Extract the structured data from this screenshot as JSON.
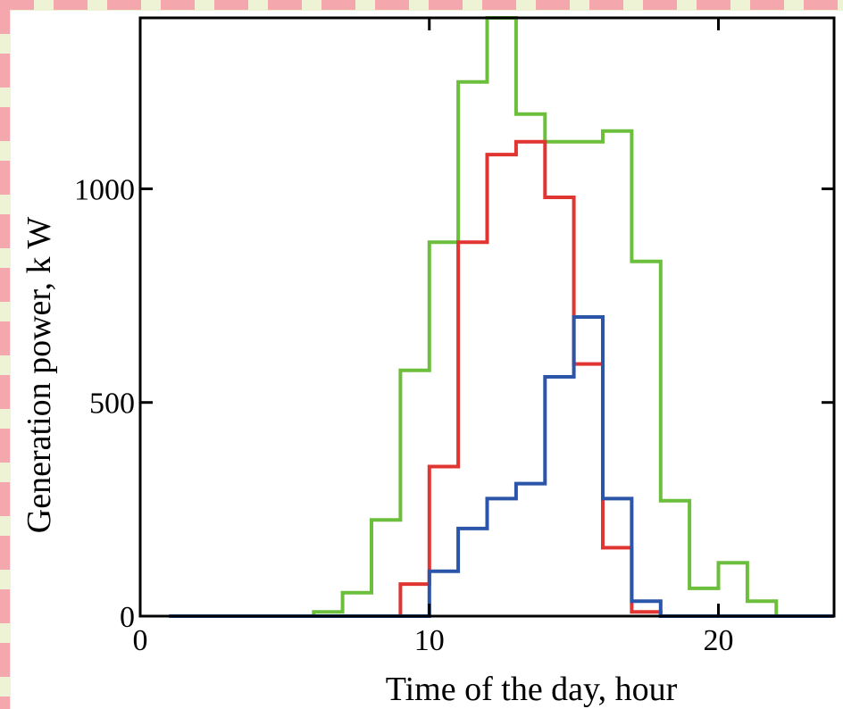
{
  "chart_data": {
    "type": "line",
    "step": true,
    "title": "",
    "xlabel": "Time of the day, hour",
    "ylabel": "Generation power, k  W",
    "xlim": [
      0,
      24
    ],
    "ylim": [
      0,
      1400
    ],
    "x_ticks": [
      0,
      10,
      20
    ],
    "y_ticks": [
      0,
      500,
      1000
    ],
    "grid": false,
    "legend": "none",
    "x": [
      1,
      2,
      3,
      4,
      5,
      6,
      7,
      8,
      9,
      10,
      11,
      12,
      13,
      14,
      15,
      16,
      17,
      18,
      19,
      20,
      21,
      22,
      23,
      24
    ],
    "series": [
      {
        "color": "#6cbf3c",
        "values": [
          0,
          0,
          0,
          0,
          0,
          10,
          55,
          225,
          575,
          875,
          1250,
          1400,
          1175,
          1110,
          1110,
          1135,
          830,
          270,
          65,
          125,
          35,
          0,
          0,
          0
        ]
      },
      {
        "color": "#e03530",
        "values": [
          0,
          0,
          0,
          0,
          0,
          0,
          0,
          0,
          75,
          350,
          875,
          1080,
          1110,
          980,
          590,
          160,
          10,
          0,
          0,
          0,
          0,
          0,
          0,
          0
        ]
      },
      {
        "color": "#2a55a8",
        "values": [
          0,
          0,
          0,
          0,
          0,
          0,
          0,
          0,
          0,
          105,
          205,
          275,
          310,
          560,
          700,
          275,
          35,
          0,
          0,
          0,
          0,
          0,
          0,
          0
        ]
      }
    ]
  },
  "frame_colors": {
    "border_pink": "#f4a7ad",
    "border_cream": "#eef3d5"
  }
}
